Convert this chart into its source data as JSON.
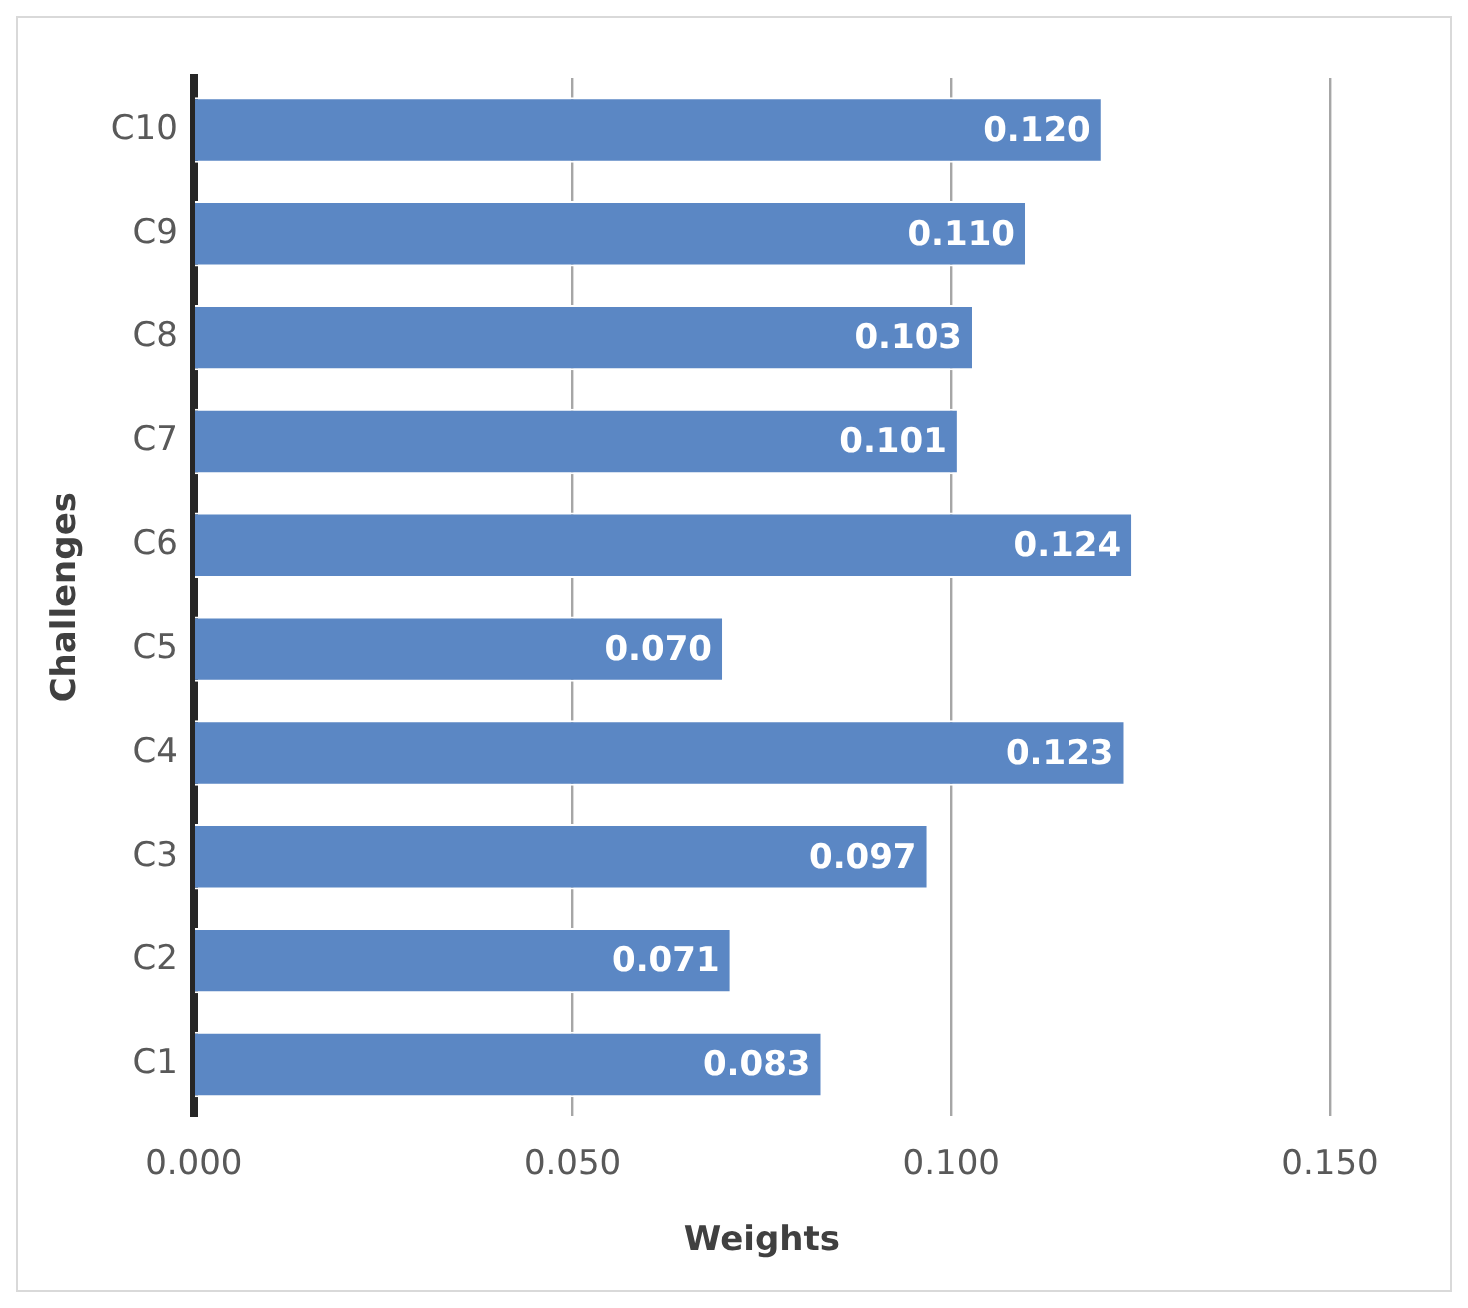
{
  "chart_data": {
    "type": "bar",
    "orientation": "horizontal",
    "xlabel": "Weights",
    "ylabel": "Challenges",
    "categories": [
      "C10",
      "C9",
      "C8",
      "C7",
      "C6",
      "C5",
      "C4",
      "C3",
      "C2",
      "C1"
    ],
    "values": [
      0.12,
      0.11,
      0.103,
      0.101,
      0.124,
      0.07,
      0.123,
      0.097,
      0.071,
      0.083
    ],
    "value_labels": [
      "0.120",
      "0.110",
      "0.103",
      "0.101",
      "0.124",
      "0.070",
      "0.123",
      "0.097",
      "0.071",
      "0.083"
    ],
    "color": "#5b87c4",
    "xlim": [
      0,
      0.15
    ],
    "xticks": [
      {
        "value": 0,
        "label": "0.000"
      },
      {
        "value": 0.05,
        "label": "0.050"
      },
      {
        "value": 0.1,
        "label": "0.100"
      },
      {
        "value": 0.15,
        "label": "0.150"
      }
    ],
    "grid": "x",
    "legend": false
  }
}
